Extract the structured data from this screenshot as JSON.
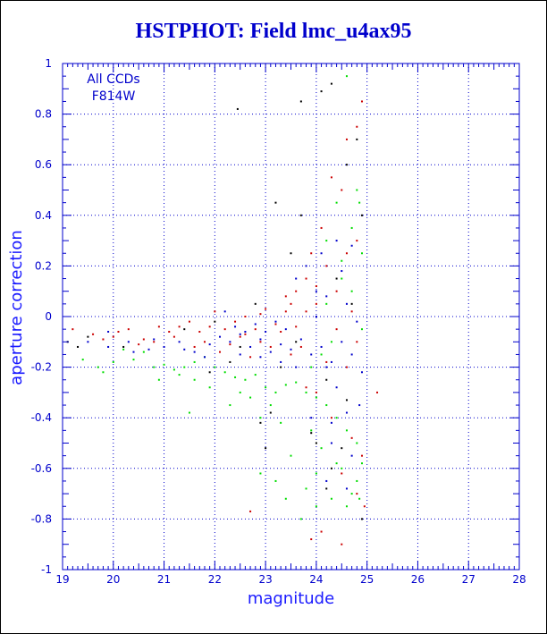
{
  "title": "HSTPHOT: Field lmc_u4ax95",
  "chart_data": {
    "type": "scatter",
    "title": "HSTPHOT: Field lmc_u4ax95",
    "xlabel": "magnitude",
    "ylabel": "aperture correction",
    "xlim": [
      19,
      28
    ],
    "ylim": [
      -1,
      1
    ],
    "x_ticks": [
      "19",
      "20",
      "21",
      "22",
      "23",
      "24",
      "25",
      "26",
      "27",
      "28"
    ],
    "y_ticks": [
      "-1",
      "-0.8",
      "-0.6",
      "-0.4",
      "-0.2",
      "0",
      "0.2",
      "0.4",
      "0.6",
      "0.8",
      "1"
    ],
    "grid": true,
    "grid_style": "dotted",
    "annotations": [
      "All CCDs",
      "F814W"
    ],
    "colors": {
      "axis": "#0000cc",
      "red": "#cc0000",
      "green": "#00dd00",
      "blue": "#0000cc",
      "black": "#000000"
    },
    "series": [
      {
        "color": "black",
        "points": [
          [
            22.45,
            0.82
          ],
          [
            24.1,
            0.89
          ],
          [
            24.3,
            0.92
          ],
          [
            23.7,
            0.85
          ],
          [
            24.6,
            0.6
          ],
          [
            24.8,
            0.7
          ],
          [
            23.2,
            0.45
          ],
          [
            23.7,
            0.4
          ],
          [
            24.9,
            0.4
          ],
          [
            23.5,
            0.25
          ],
          [
            24.0,
            -0.5
          ],
          [
            24.3,
            -0.6
          ],
          [
            24.9,
            -0.8
          ],
          [
            23.0,
            -0.52
          ],
          [
            22.9,
            -0.42
          ],
          [
            24.2,
            -0.68
          ],
          [
            19.1,
            -0.1
          ],
          [
            19.3,
            -0.12
          ],
          [
            19.5,
            -0.08
          ],
          [
            20.2,
            -0.12
          ],
          [
            21.4,
            -0.05
          ],
          [
            22.0,
            -0.02
          ],
          [
            22.5,
            -0.12
          ],
          [
            23.3,
            -0.2
          ],
          [
            24.2,
            -0.25
          ],
          [
            24.6,
            -0.33
          ],
          [
            22.8,
            0.05
          ],
          [
            21.9,
            -0.22
          ],
          [
            23.6,
            -0.1
          ],
          [
            24.4,
            0.15
          ],
          [
            24.7,
            0.05
          ],
          [
            23.9,
            -0.46
          ],
          [
            24.5,
            -0.52
          ],
          [
            23.1,
            -0.38
          ],
          [
            22.3,
            -0.18
          ]
        ]
      },
      {
        "color": "red",
        "points": [
          [
            19.2,
            -0.05
          ],
          [
            19.6,
            -0.07
          ],
          [
            20.0,
            -0.08
          ],
          [
            20.3,
            -0.05
          ],
          [
            20.6,
            -0.09
          ],
          [
            20.8,
            -0.1
          ],
          [
            21.1,
            -0.06
          ],
          [
            21.3,
            -0.04
          ],
          [
            21.5,
            -0.02
          ],
          [
            21.7,
            -0.06
          ],
          [
            21.9,
            -0.04
          ],
          [
            22.0,
            0.02
          ],
          [
            22.2,
            -0.05
          ],
          [
            22.4,
            -0.02
          ],
          [
            22.6,
            0.0
          ],
          [
            22.8,
            -0.05
          ],
          [
            23.0,
            0.03
          ],
          [
            23.2,
            -0.03
          ],
          [
            23.4,
            0.08
          ],
          [
            23.6,
            0.1
          ],
          [
            23.8,
            0.15
          ],
          [
            24.0,
            0.05
          ],
          [
            24.2,
            0.2
          ],
          [
            24.4,
            0.1
          ],
          [
            24.6,
            0.25
          ],
          [
            24.8,
            0.3
          ],
          [
            24.3,
            0.55
          ],
          [
            24.6,
            0.7
          ],
          [
            24.8,
            0.75
          ],
          [
            24.9,
            0.85
          ],
          [
            24.5,
            0.5
          ],
          [
            24.1,
            0.35
          ],
          [
            23.9,
            0.25
          ],
          [
            23.7,
            -0.12
          ],
          [
            23.5,
            -0.15
          ],
          [
            23.3,
            -0.06
          ],
          [
            22.9,
            -0.1
          ],
          [
            22.7,
            -0.16
          ],
          [
            22.5,
            -0.08
          ],
          [
            22.1,
            -0.14
          ],
          [
            21.8,
            -0.1
          ],
          [
            21.6,
            -0.12
          ],
          [
            21.2,
            -0.08
          ],
          [
            20.9,
            -0.04
          ],
          [
            20.5,
            -0.11
          ],
          [
            20.1,
            -0.06
          ],
          [
            19.8,
            -0.09
          ],
          [
            24.0,
            -0.3
          ],
          [
            24.3,
            -0.4
          ],
          [
            24.7,
            -0.48
          ],
          [
            24.9,
            -0.55
          ],
          [
            25.2,
            -0.3
          ],
          [
            24.5,
            -0.62
          ],
          [
            23.8,
            -0.28
          ],
          [
            24.2,
            -0.18
          ],
          [
            24.6,
            -0.2
          ],
          [
            24.8,
            -0.1
          ],
          [
            23.6,
            -0.04
          ],
          [
            23.4,
            0.02
          ],
          [
            23.1,
            -0.12
          ],
          [
            22.9,
            0.01
          ],
          [
            22.6,
            -0.07
          ],
          [
            22.3,
            -0.11
          ],
          [
            24.1,
            -0.85
          ],
          [
            24.5,
            -0.9
          ],
          [
            24.8,
            -0.7
          ],
          [
            22.7,
            -0.77
          ],
          [
            23.9,
            -0.88
          ],
          [
            24.95,
            -0.75
          ],
          [
            24.7,
            0.02
          ],
          [
            24.4,
            -0.05
          ],
          [
            24.0,
            0.12
          ],
          [
            23.8,
            0.02
          ],
          [
            23.5,
            0.05
          ]
        ]
      },
      {
        "color": "green",
        "points": [
          [
            19.4,
            -0.17
          ],
          [
            19.7,
            -0.2
          ],
          [
            20.0,
            -0.18
          ],
          [
            20.4,
            -0.17
          ],
          [
            20.8,
            -0.2
          ],
          [
            21.0,
            -0.19
          ],
          [
            21.2,
            -0.21
          ],
          [
            21.4,
            -0.2
          ],
          [
            21.6,
            -0.18
          ],
          [
            21.8,
            -0.16
          ],
          [
            22.0,
            -0.2
          ],
          [
            22.2,
            -0.22
          ],
          [
            22.4,
            -0.24
          ],
          [
            22.6,
            -0.25
          ],
          [
            22.8,
            -0.23
          ],
          [
            23.0,
            -0.28
          ],
          [
            23.2,
            -0.3
          ],
          [
            23.4,
            -0.27
          ],
          [
            23.6,
            -0.26
          ],
          [
            23.8,
            -0.3
          ],
          [
            24.0,
            -0.32
          ],
          [
            24.2,
            -0.35
          ],
          [
            24.4,
            -0.4
          ],
          [
            24.6,
            -0.45
          ],
          [
            24.8,
            -0.5
          ],
          [
            24.5,
            -0.6
          ],
          [
            24.8,
            -0.65
          ],
          [
            24.3,
            -0.72
          ],
          [
            24.9,
            -0.58
          ],
          [
            24.6,
            -0.75
          ],
          [
            23.5,
            -0.55
          ],
          [
            23.2,
            -0.65
          ],
          [
            23.7,
            -0.8
          ],
          [
            24.0,
            -0.75
          ],
          [
            24.4,
            0.45
          ],
          [
            24.7,
            0.35
          ],
          [
            24.8,
            0.5
          ],
          [
            24.6,
            0.95
          ],
          [
            24.2,
            0.3
          ],
          [
            24.9,
            0.25
          ],
          [
            24.5,
            0.15
          ],
          [
            24.7,
            0.1
          ],
          [
            24.9,
            -0.05
          ],
          [
            24.3,
            -0.1
          ],
          [
            24.1,
            -0.15
          ],
          [
            23.9,
            -0.2
          ],
          [
            23.1,
            -0.35
          ],
          [
            22.9,
            -0.4
          ],
          [
            22.7,
            -0.32
          ],
          [
            21.9,
            -0.28
          ],
          [
            21.6,
            -0.25
          ],
          [
            21.3,
            -0.23
          ],
          [
            20.9,
            -0.25
          ],
          [
            20.6,
            -0.14
          ],
          [
            20.2,
            -0.13
          ],
          [
            19.8,
            -0.22
          ],
          [
            21.5,
            -0.38
          ],
          [
            22.3,
            -0.35
          ],
          [
            23.3,
            -0.42
          ],
          [
            23.9,
            -0.45
          ],
          [
            24.1,
            -0.52
          ],
          [
            24.4,
            -0.58
          ],
          [
            24.7,
            -0.7
          ],
          [
            24.85,
            -0.72
          ],
          [
            24.2,
            0.05
          ],
          [
            24.5,
            0.22
          ],
          [
            24.85,
            0.45
          ],
          [
            24.0,
            -0.62
          ],
          [
            23.8,
            -0.68
          ],
          [
            23.4,
            -0.72
          ],
          [
            22.9,
            -0.62
          ],
          [
            22.5,
            -0.3
          ]
        ]
      },
      {
        "color": "blue",
        "points": [
          [
            19.5,
            -0.1
          ],
          [
            19.9,
            -0.12
          ],
          [
            20.3,
            -0.1
          ],
          [
            20.7,
            -0.13
          ],
          [
            21.0,
            -0.12
          ],
          [
            21.3,
            -0.1
          ],
          [
            21.6,
            -0.14
          ],
          [
            21.9,
            -0.11
          ],
          [
            22.1,
            -0.08
          ],
          [
            22.3,
            -0.1
          ],
          [
            22.5,
            -0.07
          ],
          [
            22.7,
            -0.12
          ],
          [
            22.9,
            -0.09
          ],
          [
            23.1,
            -0.14
          ],
          [
            23.3,
            -0.11
          ],
          [
            23.5,
            -0.13
          ],
          [
            23.7,
            -0.09
          ],
          [
            23.9,
            -0.15
          ],
          [
            24.1,
            -0.12
          ],
          [
            24.3,
            -0.18
          ],
          [
            24.5,
            -0.1
          ],
          [
            24.7,
            -0.15
          ],
          [
            24.4,
            0.3
          ],
          [
            24.1,
            0.25
          ],
          [
            24.6,
            0.05
          ],
          [
            24.8,
            -0.02
          ],
          [
            23.6,
            0.15
          ],
          [
            23.8,
            0.2
          ],
          [
            24.0,
            0.1
          ],
          [
            22.2,
            0.02
          ],
          [
            22.4,
            -0.04
          ],
          [
            22.6,
            -0.06
          ],
          [
            22.8,
            -0.03
          ],
          [
            23.0,
            -0.06
          ],
          [
            23.2,
            -0.02
          ],
          [
            23.4,
            -0.05
          ],
          [
            24.2,
            -0.2
          ],
          [
            24.4,
            -0.28
          ],
          [
            24.6,
            -0.38
          ],
          [
            24.3,
            -0.5
          ],
          [
            24.7,
            -0.55
          ],
          [
            24.2,
            -0.65
          ],
          [
            24.6,
            -0.68
          ],
          [
            23.9,
            -0.4
          ],
          [
            21.8,
            -0.16
          ],
          [
            21.4,
            -0.13
          ],
          [
            20.8,
            -0.09
          ],
          [
            20.4,
            -0.14
          ],
          [
            19.9,
            -0.06
          ],
          [
            23.6,
            -0.2
          ],
          [
            23.3,
            -0.18
          ],
          [
            22.9,
            -0.16
          ],
          [
            22.5,
            -0.15
          ],
          [
            24.0,
            0.0
          ],
          [
            24.2,
            0.08
          ],
          [
            24.5,
            0.18
          ],
          [
            24.7,
            0.28
          ],
          [
            24.9,
            -0.22
          ],
          [
            24.85,
            -0.35
          ],
          [
            24.3,
            -0.42
          ]
        ]
      }
    ]
  }
}
